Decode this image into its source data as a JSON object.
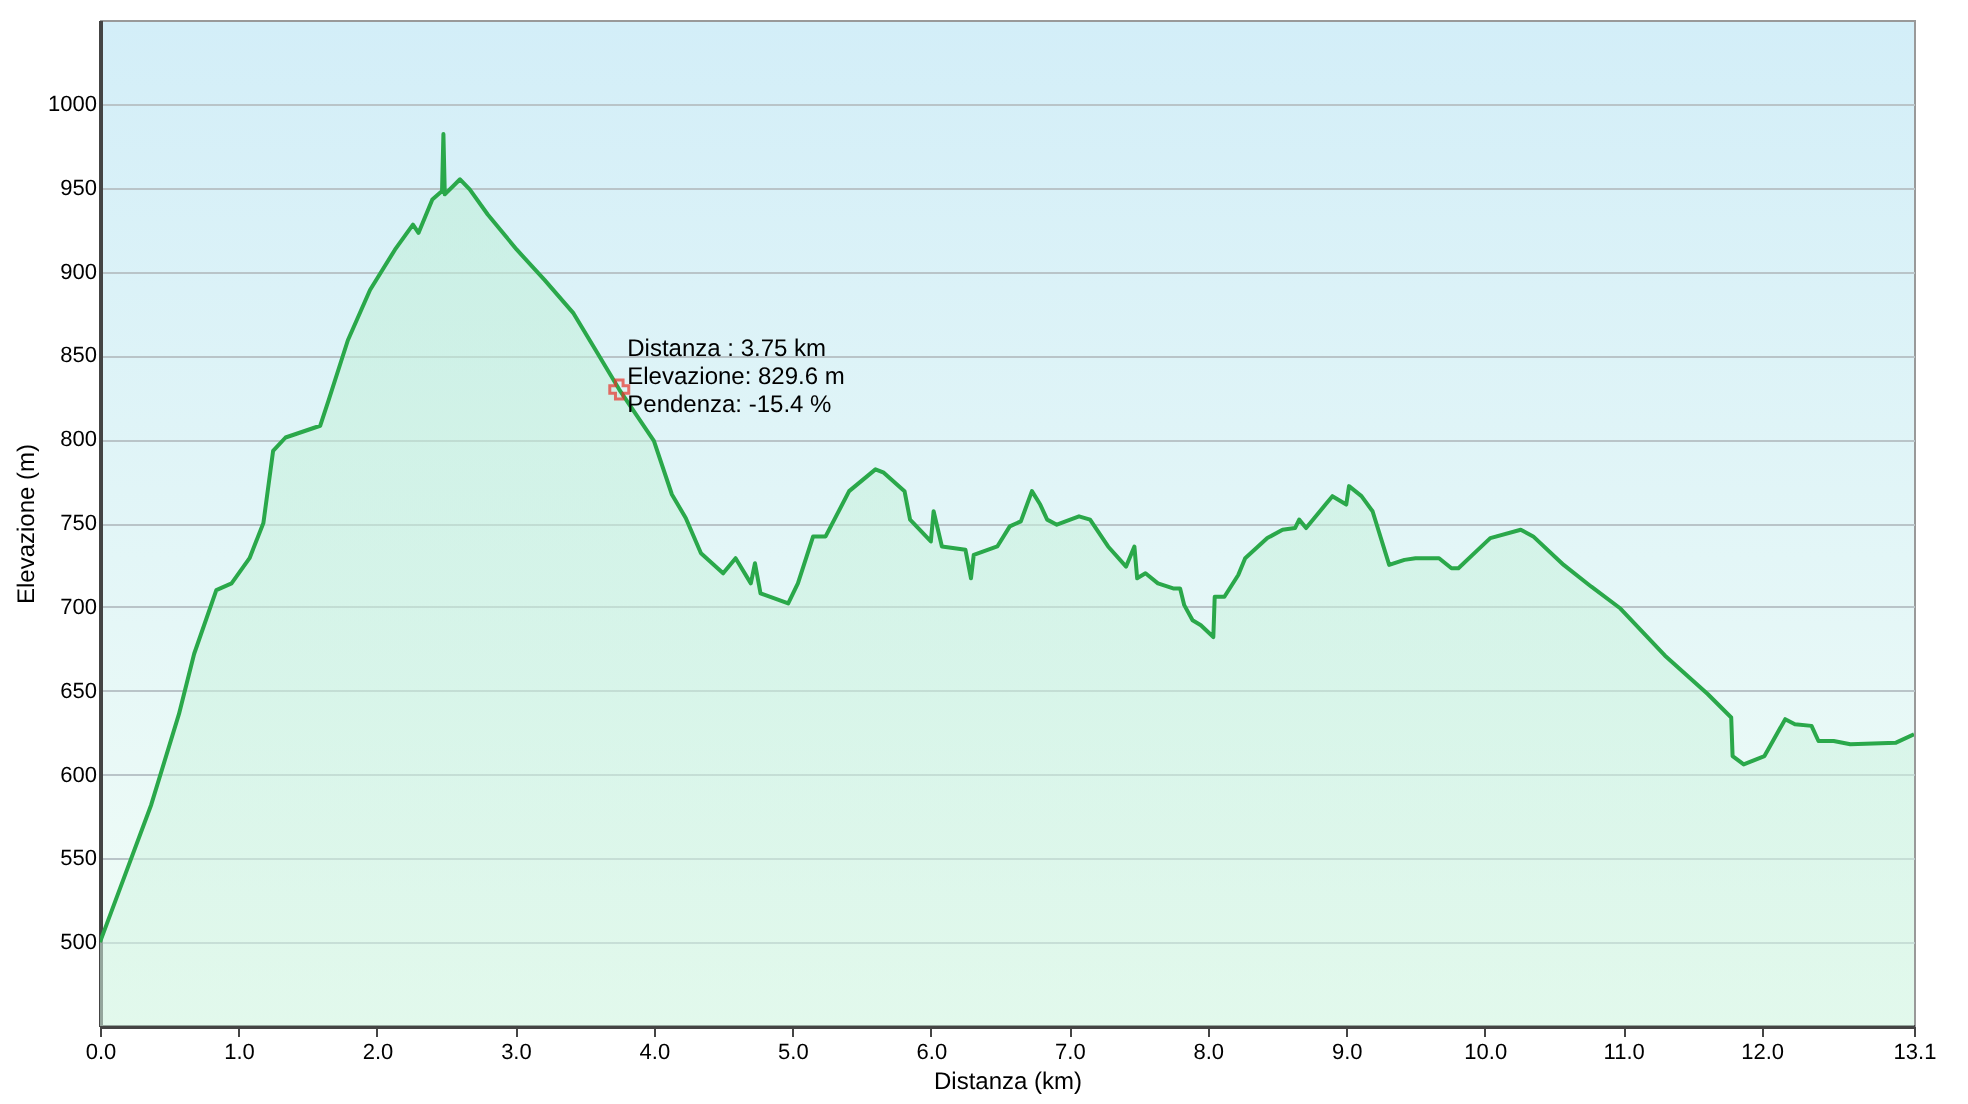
{
  "chart_data": {
    "type": "area",
    "xlabel": "Distanza  (km)",
    "ylabel": "Elevazione (m)",
    "x": [
      0,
      0.37,
      0.57,
      0.68,
      0.84,
      0.95,
      1.08,
      1.18,
      1.25,
      1.34,
      1.59,
      1.65,
      1.79,
      1.95,
      2.13,
      2.26,
      2.3,
      2.4,
      2.47,
      2.48,
      2.49,
      2.6,
      2.67,
      2.8,
      3.01,
      3.21,
      3.42,
      3.58,
      3.75,
      4.0,
      4.13,
      4.23,
      4.34,
      4.46,
      4.5,
      4.59,
      4.7,
      4.73,
      4.77,
      4.97,
      5.04,
      5.15,
      5.24,
      5.41,
      5.6,
      5.66,
      5.81,
      5.85,
      6.0,
      6.02,
      6.08,
      6.25,
      6.29,
      6.31,
      6.48,
      6.57,
      6.65,
      6.73,
      6.79,
      6.84,
      6.91,
      7.07,
      7.15,
      7.28,
      7.41,
      7.47,
      7.49,
      7.55,
      7.64,
      7.75,
      7.8,
      7.83,
      7.89,
      7.95,
      8.04,
      8.05,
      8.12,
      8.22,
      8.27,
      8.43,
      8.54,
      8.63,
      8.66,
      8.71,
      8.85,
      8.9,
      9.0,
      9.02,
      9.11,
      9.19,
      9.31,
      9.42,
      9.5,
      9.67,
      9.76,
      9.81,
      9.95,
      10.04,
      10.26,
      10.35,
      10.57,
      10.77,
      10.98,
      11.3,
      11.61,
      11.78,
      11.79,
      11.87,
      12.02,
      12.17,
      12.24,
      12.36,
      12.41,
      12.52,
      12.64,
      12.97,
      13.1
    ],
    "series": [
      {
        "color": "#2aa84a",
        "values": [
          500,
          582,
          636,
          672,
          710,
          714,
          729,
          750,
          793,
          801,
          808,
          823,
          859,
          889,
          913,
          928,
          923,
          943,
          948,
          982,
          946,
          955,
          949,
          934,
          913,
          895,
          875,
          853,
          829.6,
          799,
          767,
          753,
          732,
          723,
          720,
          729,
          714,
          726,
          708,
          702,
          714,
          742,
          742,
          769,
          782,
          780,
          769,
          752,
          739,
          757,
          736,
          734,
          717,
          731,
          736,
          748,
          751,
          769,
          761,
          752,
          749,
          754,
          752,
          736,
          724,
          736,
          717,
          720,
          714,
          711,
          711,
          701,
          692,
          689,
          682,
          706,
          706,
          719,
          729,
          741,
          746,
          747,
          752,
          747,
          761,
          766,
          761,
          772,
          766,
          757,
          725,
          728,
          729,
          729,
          723,
          723,
          734,
          741,
          746,
          742,
          725,
          712,
          699,
          671,
          648,
          634,
          611,
          606,
          611,
          633,
          630,
          629,
          620,
          620,
          618,
          619,
          624
        ]
      }
    ],
    "xlim": [
      0,
      13.1
    ],
    "ylim": [
      450,
      1050
    ],
    "xticks": [
      {
        "value": 0,
        "label": "0.0"
      },
      {
        "value": 1,
        "label": "1.0"
      },
      {
        "value": 2,
        "label": "2.0"
      },
      {
        "value": 3,
        "label": "3.0"
      },
      {
        "value": 4,
        "label": "4.0"
      },
      {
        "value": 5,
        "label": "5.0"
      },
      {
        "value": 6,
        "label": "6.0"
      },
      {
        "value": 7,
        "label": "7.0"
      },
      {
        "value": 8,
        "label": "8.0"
      },
      {
        "value": 9,
        "label": "9.0"
      },
      {
        "value": 10,
        "label": "10.0"
      },
      {
        "value": 11,
        "label": "11.0"
      },
      {
        "value": 12,
        "label": "12.0"
      },
      13.1
    ],
    "yticks": [
      500,
      550,
      600,
      650,
      700,
      750,
      800,
      850,
      900,
      950,
      1000
    ],
    "grid": "y",
    "annotations": [
      {
        "text": "Distanza  : 3.75 km\nElevazione: 829.6 m\nPendenza: -15.4 %",
        "x": 3.75,
        "y": 829.6
      }
    ]
  }
}
